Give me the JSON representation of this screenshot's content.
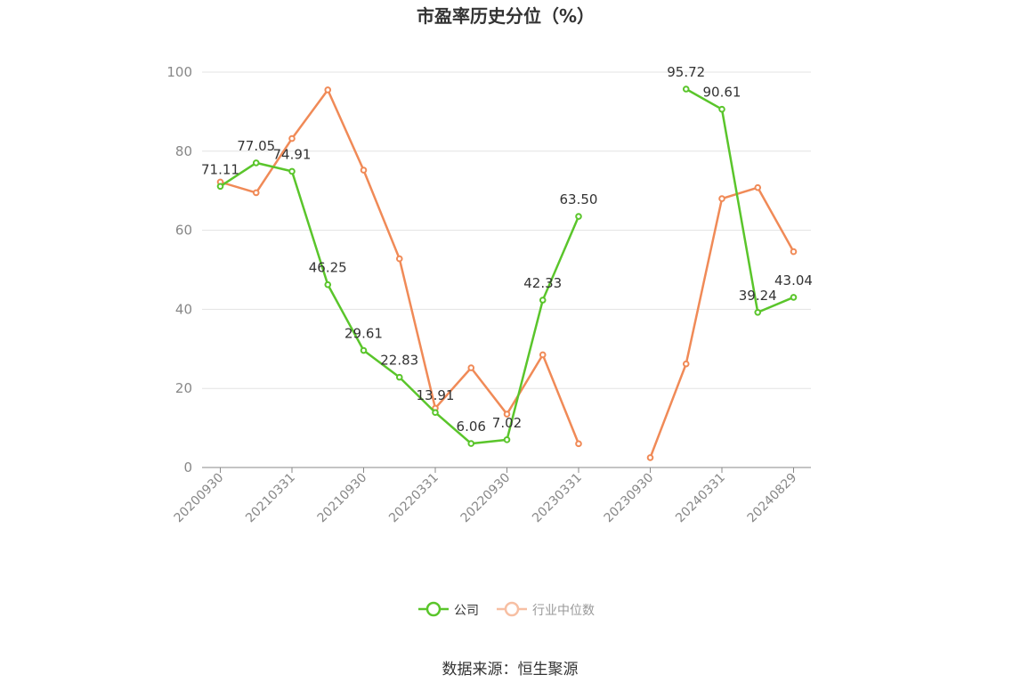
{
  "chart_data": {
    "type": "line",
    "title": "市盈率历史分位（%）",
    "xlabel": "",
    "ylabel": "",
    "ylim": [
      0,
      100
    ],
    "yticks": [
      0,
      20,
      40,
      60,
      80,
      100
    ],
    "grid": true,
    "legend_position": "bottom",
    "x": [
      "20200930",
      "20201231",
      "20210331",
      "20210630",
      "20210930",
      "20211231",
      "20220331",
      "20220630",
      "20220930",
      "20221231",
      "20230331",
      "20230630",
      "20230930",
      "20231231",
      "20240331",
      "20240630",
      "20240829"
    ],
    "x_tick_labels": [
      "20200930",
      "20210331",
      "20210930",
      "20220331",
      "20220930",
      "20230331",
      "20230930",
      "20240331",
      "20240829"
    ],
    "series": [
      {
        "name": "公司",
        "color": "#5ac52b",
        "values": [
          71.11,
          77.05,
          74.91,
          46.25,
          29.61,
          22.83,
          13.91,
          6.06,
          7.02,
          42.33,
          63.5,
          null,
          null,
          95.72,
          90.61,
          39.24,
          43.04
        ],
        "data_labels": [
          "71.11",
          "77.05",
          "74.91",
          "46.25",
          "29.61",
          "22.83",
          "13.91",
          "6.06",
          "7.02",
          "42.33",
          "63.50",
          null,
          null,
          "95.72",
          "90.61",
          "39.24",
          "43.04"
        ]
      },
      {
        "name": "行业中位数",
        "color": "#f08a57",
        "values": [
          72.2,
          69.5,
          83.2,
          95.5,
          75.2,
          52.8,
          15.0,
          25.2,
          13.5,
          28.5,
          6.0,
          null,
          2.5,
          26.2,
          68.0,
          70.8,
          54.6
        ],
        "data_labels": null
      }
    ]
  },
  "source_text": "数据来源：恒生聚源"
}
